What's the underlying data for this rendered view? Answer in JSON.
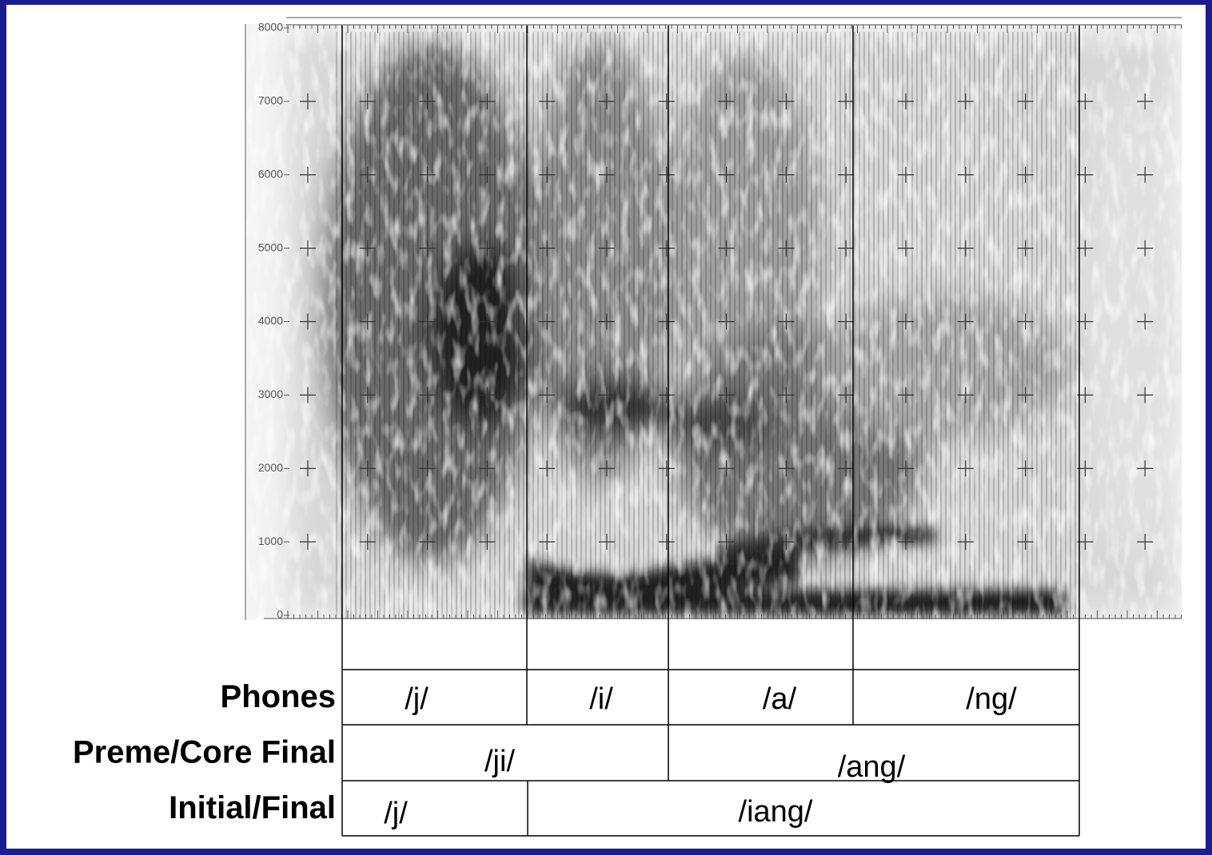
{
  "spectrogram": {
    "yticks": [
      "0",
      "1000",
      "2000",
      "3000",
      "4000",
      "5000",
      "6000",
      "7000",
      "8000"
    ]
  },
  "tiers": [
    {
      "label": "Phones",
      "segments": [
        "/j/",
        "/i/",
        "/a/",
        "/ng/"
      ]
    },
    {
      "label": "Preme/Core Final",
      "segments": [
        "/ji/",
        "/ang/"
      ]
    },
    {
      "label": "Initial/Final",
      "segments": [
        "/j/",
        "/iang/"
      ]
    }
  ]
}
